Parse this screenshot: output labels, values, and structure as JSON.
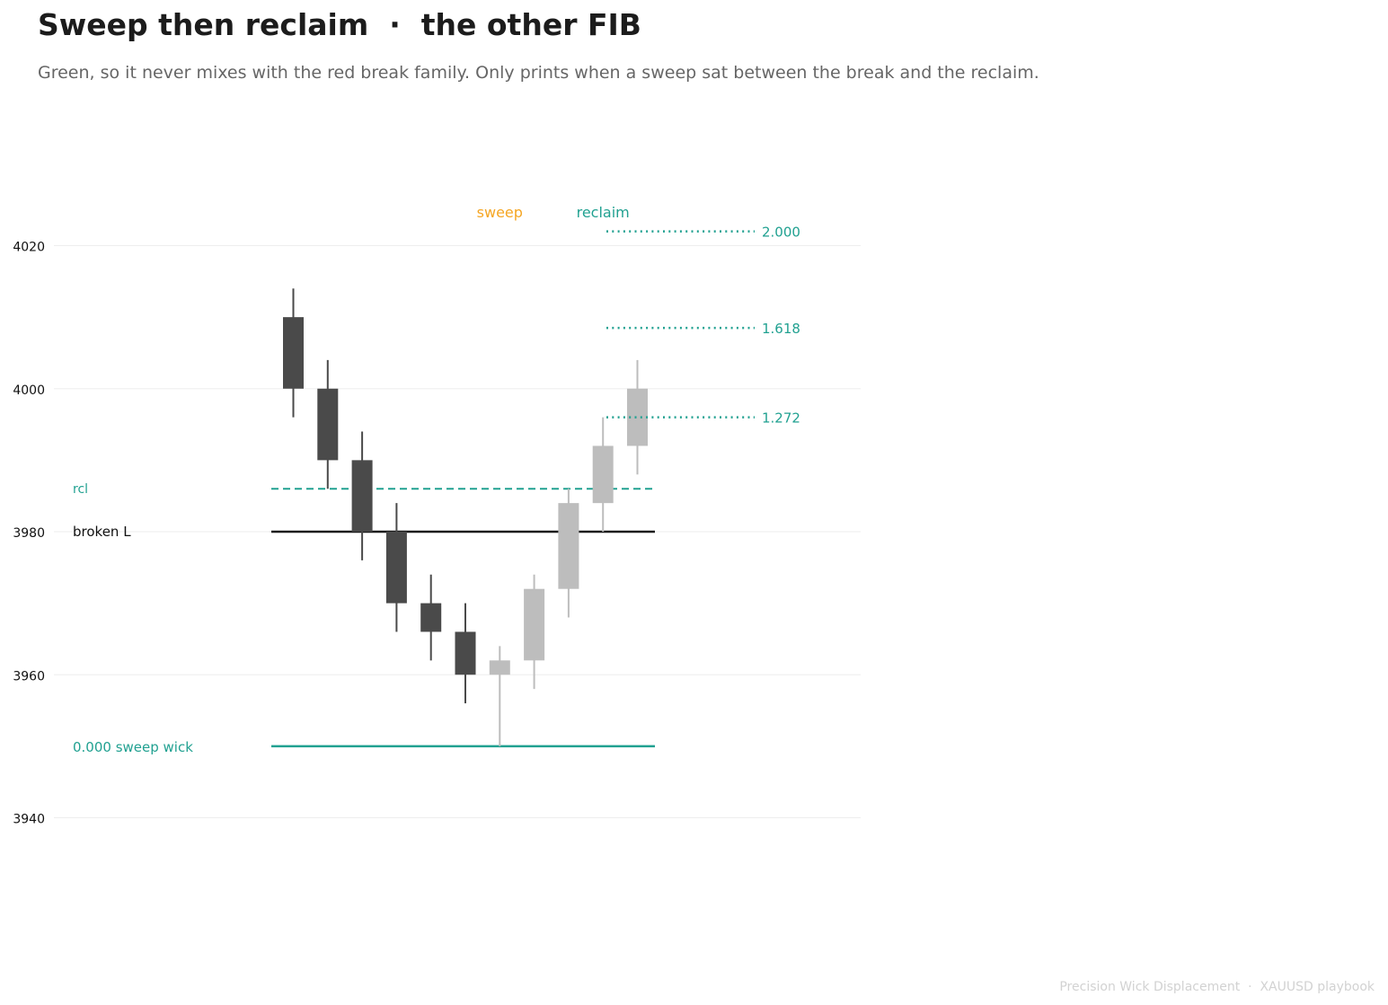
{
  "header": {
    "title": "Sweep then reclaim  ·  the other FIB",
    "subtitle": "Green, so it never mixes with the red break family. Only prints when a sweep sat between the break and the reclaim."
  },
  "footer": {
    "text": "Precision Wick Displacement  ·  XAUUSD playbook"
  },
  "colors": {
    "bear_candle": "#4a4a4a",
    "later_candle": "#bdbdbd",
    "fib_green": "#21a191",
    "sweep_orange": "#f5a623",
    "broken_level": "#1c1c1c",
    "grid": "#eeeeee"
  },
  "chart_data": {
    "type": "candlestick",
    "title": "",
    "xlabel": "",
    "ylabel": "",
    "ylim": [
      3940,
      4020
    ],
    "yticks": [
      3940,
      3960,
      3980,
      4000,
      4020
    ],
    "grid": true,
    "candles": [
      {
        "open": 4010,
        "high": 4014,
        "low": 3996,
        "close": 4000,
        "style": "dark"
      },
      {
        "open": 4000,
        "high": 4004,
        "low": 3986,
        "close": 3990,
        "style": "dark"
      },
      {
        "open": 3990,
        "high": 3994,
        "low": 3976,
        "close": 3980,
        "style": "dark"
      },
      {
        "open": 3980,
        "high": 3984,
        "low": 3966,
        "close": 3970,
        "style": "dark"
      },
      {
        "open": 3970,
        "high": 3974,
        "low": 3962,
        "close": 3966,
        "style": "dark"
      },
      {
        "open": 3966,
        "high": 3970,
        "low": 3956,
        "close": 3960,
        "style": "dark"
      },
      {
        "open": 3960,
        "high": 3964,
        "low": 3950,
        "close": 3962,
        "style": "light"
      },
      {
        "open": 3962,
        "high": 3974,
        "low": 3958,
        "close": 3972,
        "style": "light"
      },
      {
        "open": 3972,
        "high": 3986,
        "low": 3968,
        "close": 3984,
        "style": "light"
      },
      {
        "open": 3984,
        "high": 3996,
        "low": 3980,
        "close": 3992,
        "style": "light"
      },
      {
        "open": 3992,
        "high": 4004,
        "low": 3988,
        "close": 4000,
        "style": "light"
      }
    ],
    "levels": {
      "broken": {
        "label": "broken L",
        "price": 3980
      },
      "reclaim": {
        "label": "rcl",
        "price": 3986
      },
      "sweep_wick": {
        "label": "0.000  sweep wick",
        "price": 3950
      }
    },
    "fib_extensions": [
      {
        "label": "1.272",
        "price": 3996
      },
      {
        "label": "1.618",
        "price": 4008.5
      },
      {
        "label": "2.000",
        "price": 4022
      }
    ],
    "markers": [
      {
        "label": "sweep",
        "candle_index": 6
      },
      {
        "label": "reclaim",
        "candle_index": 9
      }
    ]
  }
}
